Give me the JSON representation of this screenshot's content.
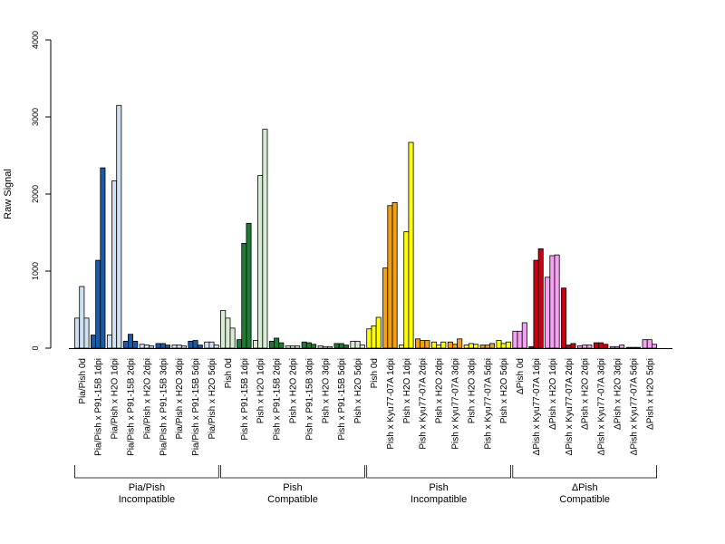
{
  "chart_data": {
    "type": "bar",
    "ylabel": "Raw Signal",
    "ylim": [
      0,
      4000
    ],
    "yticks": [
      0,
      1000,
      2000,
      3000,
      4000
    ],
    "grid": false,
    "legend": "none",
    "replicates_per_category": 3,
    "categories": [
      "Pia/Pish 0d",
      "Pia/Pish x P91-15B 1dpi",
      "Pia/Pish x H2O 1dpi",
      "Pia/Pish x P91-15B 2dpi",
      "Pia/Pish x H2O 2dpi",
      "Pia/Pish x P91-15B 3dpi",
      "Pia/Pish x H2O 3dpi",
      "Pia/Pish x P91-15B 5dpi",
      "Pia/Pish x H2O 5dpi",
      "Pish 0d",
      "Pish x P91-15B 1dpi",
      "Pish x H2O 1dpi",
      "Pish x P91-15B 2dpi",
      "Pish x H2O 2dpi",
      "Pish x P91-15B 3dpi",
      "Pish x H2O 3dpi",
      "Pish x P91-15B 5dpi",
      "Pish x H2O 5dpi",
      "Pish 0d",
      "Pish x Kyu77-07A 1dpi",
      "Pish x H2O 1dpi",
      "Pish x Kyu77-07A 2dpi",
      "Pish x H2O 2dpi",
      "Pish x Kyu77-07A 3dpi",
      "Pish x H2O 3dpi",
      "Pish x Kyu77-07A 5dpi",
      "Pish x H2O 5dpi",
      "ΔPish 0d",
      "ΔPish x Kyu77-07A 1dpi",
      "ΔPish x H2O 1dpi",
      "ΔPish x Kyu77-07A 2dpi",
      "ΔPish x H2O 2dpi",
      "ΔPish x Kyu77-07A 3dpi",
      "ΔPish x H2O 3dpi",
      "ΔPish x Kyu77-07A 5dpi",
      "ΔPish x H2O 5dpi"
    ],
    "values": [
      [
        390,
        800,
        390
      ],
      [
        170,
        1140,
        2340
      ],
      [
        170,
        2170,
        3150
      ],
      [
        90,
        180,
        90
      ],
      [
        50,
        40,
        30
      ],
      [
        60,
        60,
        40
      ],
      [
        40,
        40,
        30
      ],
      [
        90,
        100,
        40
      ],
      [
        80,
        80,
        40
      ],
      [
        490,
        390,
        260
      ],
      [
        110,
        1360,
        1620
      ],
      [
        100,
        2240,
        2840
      ],
      [
        90,
        130,
        70
      ],
      [
        30,
        30,
        30
      ],
      [
        80,
        70,
        50
      ],
      [
        30,
        20,
        20
      ],
      [
        60,
        60,
        40
      ],
      [
        90,
        90,
        40
      ],
      [
        250,
        290,
        400
      ],
      [
        1040,
        1850,
        1890
      ],
      [
        40,
        1510,
        2670
      ],
      [
        120,
        100,
        100
      ],
      [
        80,
        40,
        80
      ],
      [
        80,
        50,
        120
      ],
      [
        40,
        60,
        50
      ],
      [
        40,
        40,
        60
      ],
      [
        100,
        60,
        80
      ],
      [
        220,
        220,
        330
      ],
      [
        20,
        1140,
        1290
      ],
      [
        920,
        1200,
        1210
      ],
      [
        780,
        40,
        60
      ],
      [
        30,
        40,
        40
      ],
      [
        70,
        70,
        50
      ],
      [
        20,
        20,
        40
      ],
      [
        10,
        10,
        10
      ],
      [
        110,
        110,
        50
      ]
    ],
    "bar_colors": [
      "#d0e0f0",
      "#1a5ba8",
      "#d0e0f0",
      "#1a5ba8",
      "#d0e0f0",
      "#1a5ba8",
      "#d0e0f0",
      "#1a5ba8",
      "#d0e0f0",
      "#d8ecd5",
      "#1e7b34",
      "#d8ecd5",
      "#1e7b34",
      "#d8ecd5",
      "#1e7b34",
      "#d8ecd5",
      "#1e7b34",
      "#d8ecd5",
      "#ffff00",
      "#f3a010",
      "#ffff00",
      "#f3a010",
      "#ffff00",
      "#f3a010",
      "#ffff00",
      "#f3a010",
      "#ffff00",
      "#f5a0f0",
      "#cc0010",
      "#f5a0f0",
      "#cc0010",
      "#f5a0f0",
      "#cc0010",
      "#f5a0f0",
      "#cc0010",
      "#f5a0f0"
    ],
    "groups": [
      {
        "line1": "Pia/Pish",
        "line2": "Incompatible",
        "start": 0,
        "end": 8
      },
      {
        "line1": "Pish",
        "line2": "Compatible",
        "start": 9,
        "end": 17
      },
      {
        "line1": "Pish",
        "line2": "Incompatible",
        "start": 18,
        "end": 26
      },
      {
        "line1": "ΔPish",
        "line2": "Compatible",
        "start": 27,
        "end": 35
      }
    ]
  }
}
